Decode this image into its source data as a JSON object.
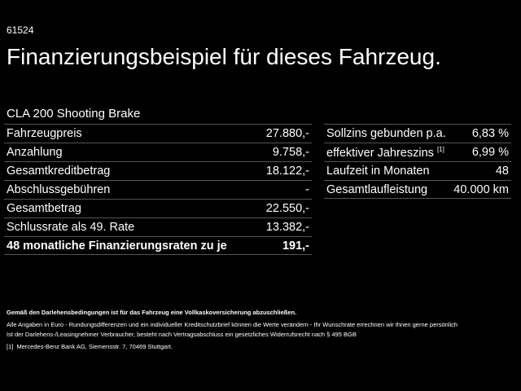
{
  "code": "61524",
  "title": "Finanzierungsbeispiel für dieses Fahrzeug.",
  "model": "CLA 200 Shooting Brake",
  "left_rows": [
    {
      "label": "Fahrzeugpreis",
      "value": "27.880,-"
    },
    {
      "label": "Anzahlung",
      "value": "9.758,-"
    },
    {
      "label": "Gesamtkreditbetrag",
      "value": "18.122,-"
    },
    {
      "label": "Abschlussgebühren",
      "value": "-"
    },
    {
      "label": "Gesamtbetrag",
      "value": "22.550,-"
    },
    {
      "label": "Schlussrate als 49. Rate",
      "value": "13.382,-"
    },
    {
      "label": "48 monatliche Finanzierungsraten zu je",
      "value": "191,-"
    }
  ],
  "right_rows": [
    {
      "label": "Sollzins gebunden p.a.",
      "sup": "",
      "value": "6,83 %"
    },
    {
      "label": "effektiver Jahreszins",
      "sup": "[1]",
      "value": "6,99 %"
    },
    {
      "label": "Laufzeit in Monaten",
      "sup": "",
      "value": "48"
    },
    {
      "label": "Gesamtlaufleistung",
      "sup": "",
      "value": "40.000 km"
    }
  ],
  "footer": {
    "bold": "Gemäß den Darlehensbedingungen ist für das Fahrzeug eine Vollkaskoversicherung abzuschließen.",
    "line1": "Alle Angaben in Euro - Rundungsdifferenzen und ein individueller Kreditschutzbrief können die Werte verändern - Ihr Wunschrate errechnen wir Ihnen gerne persönlich",
    "line2": "Ist der Darlehens-/Leasingnehmer Verbraucher, besteht nach Vertragsabschluss ein gesetzliches Widerrufsrecht nach § 495 BGB",
    "fn_mark": "[1]",
    "fn_text": "Mercedes-Benz Bank AG, Siemensstr. 7, 70469 Stuttgart."
  }
}
